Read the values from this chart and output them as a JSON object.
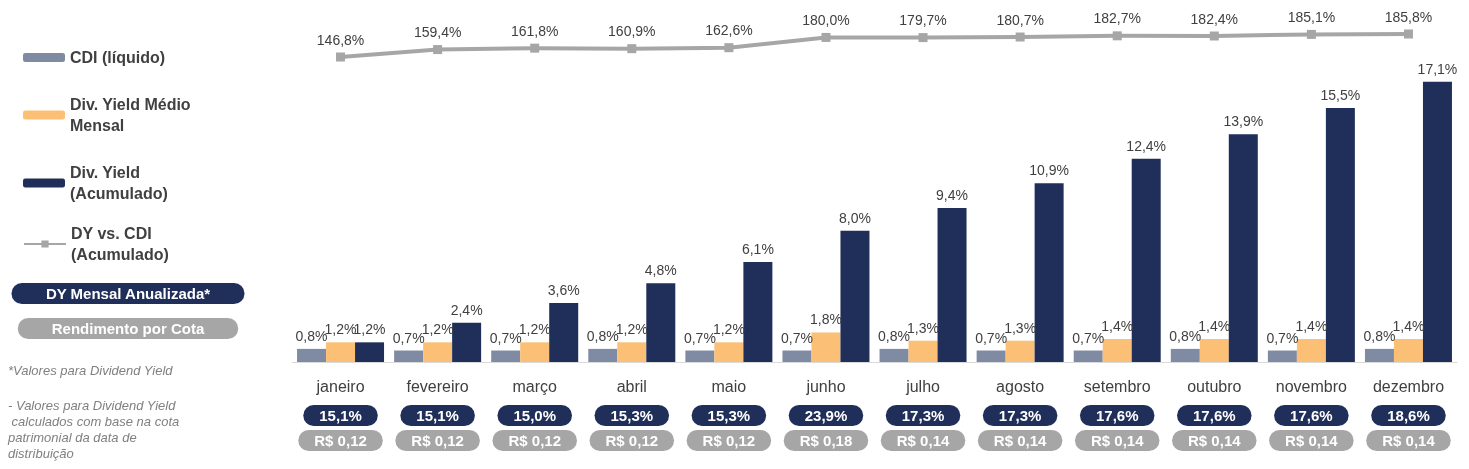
{
  "chart_data": [
    {
      "type": "line",
      "categories": [
        null,
        null,
        null,
        null,
        null,
        null,
        null,
        null,
        null,
        null,
        null,
        null
      ],
      "series": [
        {
          "name": "DY vs. CDI (Acumulado)",
          "color": "#a6a6a6",
          "marker": "square",
          "values": [
            146.8,
            159.4,
            161.8,
            160.9,
            162.6,
            180.0,
            179.7,
            180.7,
            182.7,
            182.4,
            185.1,
            185.8
          ],
          "value_labels": [
            "146,8%",
            "159,4%",
            "161,8%",
            "160,9%",
            "162,6%",
            "180,0%",
            "179,7%",
            "180,7%",
            "182,7%",
            "182,4%",
            "185,1%",
            "185,8%"
          ]
        }
      ],
      "tick_labels": false,
      "grid": false,
      "legend": "left"
    },
    {
      "type": "bar",
      "categories": [
        "janeiro",
        "fevereiro",
        "março",
        "abril",
        "maio",
        "junho",
        "julho",
        "agosto",
        "setembro",
        "outubro",
        "novembro",
        "dezembro"
      ],
      "series": [
        {
          "name": "CDI (líquido)",
          "color": "#7f8aa3",
          "values": [
            0.8,
            0.7,
            0.7,
            0.8,
            0.7,
            0.7,
            0.8,
            0.7,
            0.7,
            0.8,
            0.7,
            0.8
          ],
          "value_labels": [
            "0,8%",
            "0,7%",
            "0,7%",
            "0,8%",
            "0,7%",
            "0,7%",
            "0,8%",
            "0,7%",
            "0,7%",
            "0,8%",
            "0,7%",
            "0,8%"
          ]
        },
        {
          "name": "Div. Yield Médio Mensal",
          "color": "#fbbf75",
          "values": [
            1.2,
            1.2,
            1.2,
            1.2,
            1.2,
            1.8,
            1.3,
            1.3,
            1.4,
            1.4,
            1.4,
            1.4
          ],
          "value_labels": [
            "1,2%",
            "1,2%",
            "1,2%",
            "1,2%",
            "1,2%",
            "1,8%",
            "1,3%",
            "1,3%",
            "1,4%",
            "1,4%",
            "1,4%",
            "1,4%"
          ]
        },
        {
          "name": "Div. Yield (Acumulado)",
          "color": "#1f2f5a",
          "values": [
            1.2,
            2.4,
            3.6,
            4.8,
            6.1,
            8.0,
            9.4,
            10.9,
            12.4,
            13.9,
            15.5,
            17.1
          ],
          "value_labels": [
            "1,2%",
            "2,4%",
            "3,6%",
            "4,8%",
            "6,1%",
            "8,0%",
            "9,4%",
            "10,9%",
            "12,4%",
            "13,9%",
            "15,5%",
            "17,1%"
          ]
        }
      ],
      "tick_labels": "x",
      "grid": false,
      "legend": "left",
      "annotations": [
        "DY Mensal Anualizada*",
        "Rendimento por Cota",
        "*Valores para Dividend Yield",
        "- Valores para Dividend Yield calculados com base na cota patrimonial da data de distribuição",
        "15,1%",
        "15,1%",
        "15,0%",
        "15,3%",
        "15,3%",
        "23,9%",
        "17,3%",
        "17,3%",
        "17,6%",
        "17,6%",
        "17,6%",
        "18,6%",
        "R$ 0,12",
        "R$ 0,12",
        "R$ 0,12",
        "R$ 0,12",
        "R$ 0,12",
        "R$ 0,18",
        "R$ 0,14",
        "R$ 0,14",
        "R$ 0,14",
        "R$ 0,14",
        "R$ 0,14",
        "R$ 0,14"
      ]
    }
  ]
}
